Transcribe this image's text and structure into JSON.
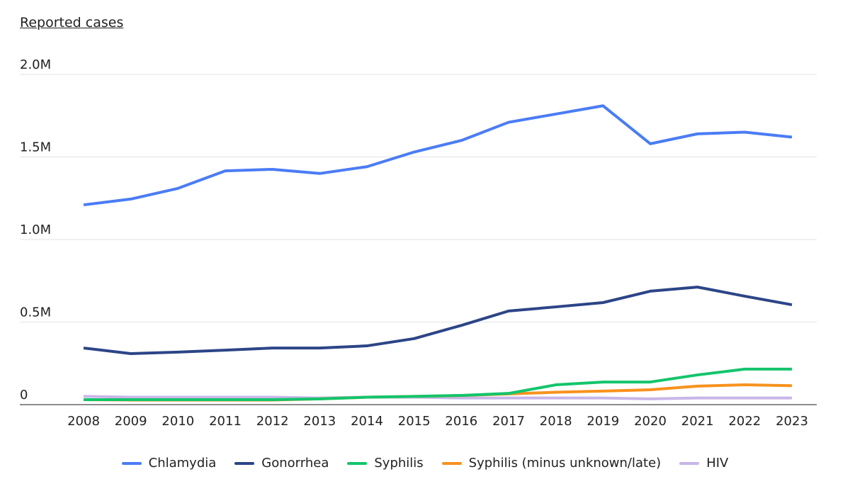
{
  "chart_data": {
    "type": "line",
    "ylabel": "Reported cases",
    "ylim": [
      0,
      2000000
    ],
    "yticks": [
      {
        "v": 0,
        "label": "0"
      },
      {
        "v": 500000,
        "label": "0.5M"
      },
      {
        "v": 1000000,
        "label": "1.0M"
      },
      {
        "v": 1500000,
        "label": "1.5M"
      },
      {
        "v": 2000000,
        "label": "2.0M"
      }
    ],
    "x": [
      "2008",
      "2009",
      "2010",
      "2011",
      "2012",
      "2013",
      "2014",
      "2015",
      "2016",
      "2017",
      "2018",
      "2019",
      "2020",
      "2021",
      "2022",
      "2023"
    ],
    "grid": "horizontal",
    "legend_position": "bottom",
    "series": [
      {
        "name": "Chlamydia",
        "color": "#4a7cf6",
        "values": [
          1210000,
          1245000,
          1310000,
          1416000,
          1425000,
          1400000,
          1441000,
          1530000,
          1600000,
          1710000,
          1760000,
          1810000,
          1580000,
          1640000,
          1650000,
          1620000
        ]
      },
      {
        "name": "Gonorrhea",
        "color": "#2c4587",
        "values": [
          343000,
          309000,
          318000,
          330000,
          343000,
          343000,
          356000,
          400000,
          480000,
          567000,
          592000,
          618000,
          687000,
          712000,
          657000,
          605000
        ]
      },
      {
        "name": "Syphilis",
        "color": "#13c56b",
        "values": [
          30000,
          30000,
          30000,
          30000,
          30000,
          35000,
          45000,
          50000,
          56000,
          68000,
          120000,
          137000,
          137000,
          180000,
          215000,
          215000
        ]
      },
      {
        "name": "Syphilis (minus unknown/late)",
        "color": "#f7921e",
        "values": [
          30000,
          28000,
          28000,
          28000,
          28000,
          35000,
          45000,
          50000,
          55000,
          65000,
          75000,
          82000,
          90000,
          112000,
          120000,
          115000
        ]
      },
      {
        "name": "HIV",
        "color": "#c8b6e8",
        "values": [
          50000,
          45000,
          45000,
          45000,
          45000,
          40000,
          45000,
          45000,
          40000,
          40000,
          40000,
          40000,
          35000,
          40000,
          40000,
          40000
        ]
      }
    ]
  }
}
